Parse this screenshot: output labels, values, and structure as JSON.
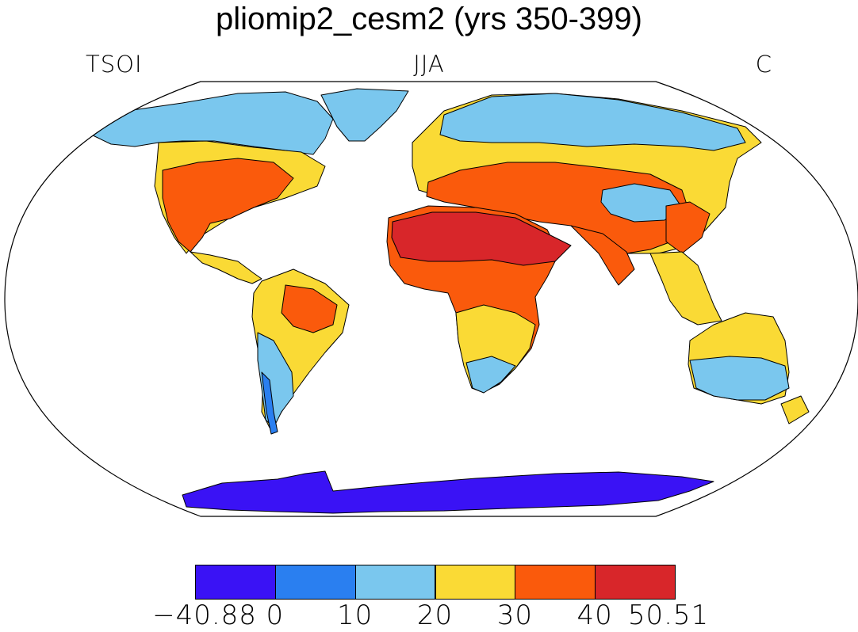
{
  "title": "pliomip2_cesm2 (yrs 350-399)",
  "left_string": "TSOI",
  "center_string": "JJA",
  "right_string": "C",
  "projection": "robinson",
  "colorbar": {
    "colors": [
      "#3a12f5",
      "#2a7ff0",
      "#7ac7ee",
      "#fada35",
      "#fa5a0c",
      "#d8262a"
    ],
    "labels": [
      "−40.88",
      "0",
      "10",
      "20",
      "30",
      "40",
      "50.51"
    ]
  },
  "land_fills": [
    {
      "name": "north-america-mid",
      "color": "#fada35"
    },
    {
      "name": "north-america-south",
      "color": "#fa5a0c"
    },
    {
      "name": "canada-arctic",
      "color": "#7ac7ee"
    },
    {
      "name": "greenland",
      "color": "#7ac7ee"
    },
    {
      "name": "south-america",
      "color": "#fada35"
    },
    {
      "name": "amazon-warm",
      "color": "#fa5a0c"
    },
    {
      "name": "patagonia",
      "color": "#7ac7ee"
    },
    {
      "name": "andes-cold",
      "color": "#2a7ff0"
    },
    {
      "name": "eurasia",
      "color": "#fada35"
    },
    {
      "name": "siberia",
      "color": "#7ac7ee"
    },
    {
      "name": "mediterranean-asia-hot",
      "color": "#fa5a0c"
    },
    {
      "name": "tibet",
      "color": "#7ac7ee"
    },
    {
      "name": "africa",
      "color": "#fa5a0c"
    },
    {
      "name": "sahara-arabia",
      "color": "#d8262a"
    },
    {
      "name": "southern-africa",
      "color": "#fada35"
    },
    {
      "name": "south-africa-cool",
      "color": "#7ac7ee"
    },
    {
      "name": "india-china",
      "color": "#fa5a0c"
    },
    {
      "name": "southeast-asia",
      "color": "#fada35"
    },
    {
      "name": "australia",
      "color": "#fada35"
    },
    {
      "name": "australia-south",
      "color": "#7ac7ee"
    },
    {
      "name": "antarctica",
      "color": "#3a12f5"
    }
  ]
}
